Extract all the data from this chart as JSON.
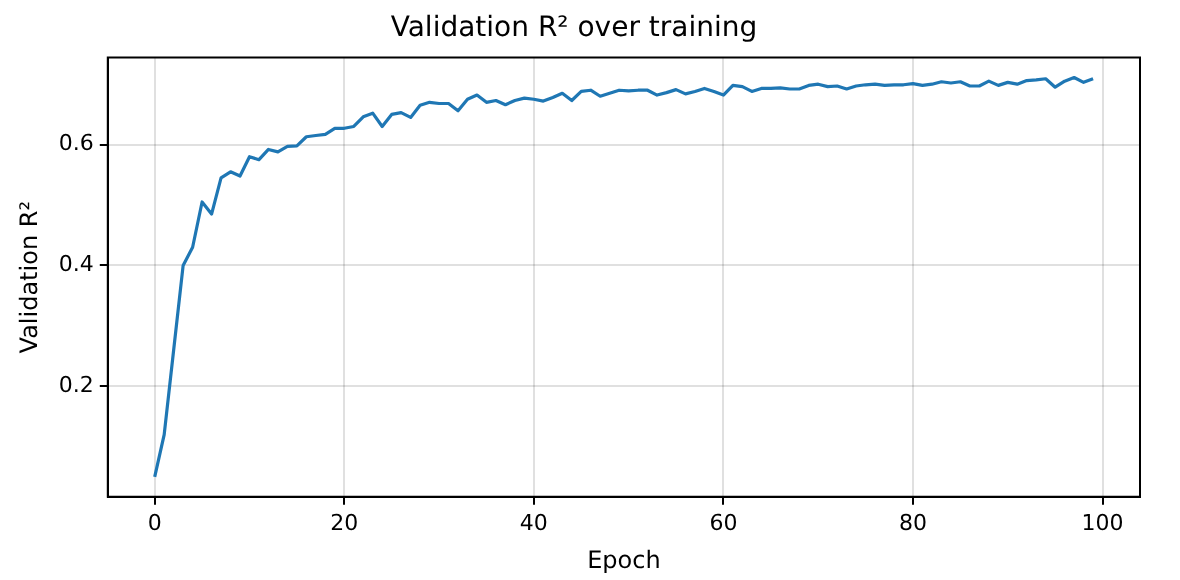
{
  "chart_data": {
    "type": "line",
    "title": "Validation R² over training",
    "xlabel": "Epoch",
    "ylabel": "Validation R²",
    "x": [
      0,
      1,
      2,
      3,
      4,
      5,
      6,
      7,
      8,
      9,
      10,
      11,
      12,
      13,
      14,
      15,
      16,
      17,
      18,
      19,
      20,
      21,
      22,
      23,
      24,
      25,
      26,
      27,
      28,
      29,
      30,
      31,
      32,
      33,
      34,
      35,
      36,
      37,
      38,
      39,
      40,
      41,
      42,
      43,
      44,
      45,
      46,
      47,
      48,
      49,
      50,
      51,
      52,
      53,
      54,
      55,
      56,
      57,
      58,
      59,
      60,
      61,
      62,
      63,
      64,
      65,
      66,
      67,
      68,
      69,
      70,
      71,
      72,
      73,
      74,
      75,
      76,
      77,
      78,
      79,
      80,
      81,
      82,
      83,
      84,
      85,
      86,
      87,
      88,
      89,
      90,
      91,
      92,
      93,
      94,
      95,
      96,
      97,
      98,
      99
    ],
    "series": [
      {
        "color": "#1f77b4",
        "values": [
          0.05,
          0.12,
          0.26,
          0.4,
          0.43,
          0.505,
          0.485,
          0.545,
          0.555,
          0.548,
          0.58,
          0.575,
          0.592,
          0.588,
          0.597,
          0.598,
          0.613,
          0.615,
          0.617,
          0.627,
          0.627,
          0.63,
          0.646,
          0.652,
          0.63,
          0.65,
          0.653,
          0.645,
          0.665,
          0.67,
          0.668,
          0.668,
          0.656,
          0.675,
          0.682,
          0.67,
          0.673,
          0.666,
          0.673,
          0.677,
          0.675,
          0.672,
          0.678,
          0.685,
          0.673,
          0.688,
          0.69,
          0.68,
          0.685,
          0.69,
          0.689,
          0.69,
          0.69,
          0.682,
          0.686,
          0.691,
          0.684,
          0.688,
          0.693,
          0.688,
          0.682,
          0.698,
          0.696,
          0.688,
          0.693,
          0.693,
          0.694,
          0.692,
          0.692,
          0.698,
          0.7,
          0.696,
          0.697,
          0.692,
          0.697,
          0.699,
          0.7,
          0.698,
          0.699,
          0.699,
          0.701,
          0.698,
          0.7,
          0.704,
          0.702,
          0.704,
          0.697,
          0.697,
          0.705,
          0.698,
          0.703,
          0.7,
          0.706,
          0.707,
          0.709,
          0.695,
          0.705,
          0.711,
          0.703,
          0.709
        ]
      }
    ],
    "xlim": [
      -4.95,
      103.95
    ],
    "xticks": [
      0,
      20,
      40,
      60,
      80,
      100
    ],
    "ylim": [
      0.017,
      0.744
    ],
    "yticks": [
      0.2,
      0.4,
      0.6
    ],
    "grid": true,
    "legend": false,
    "marker": "none",
    "line_style": "solid"
  }
}
